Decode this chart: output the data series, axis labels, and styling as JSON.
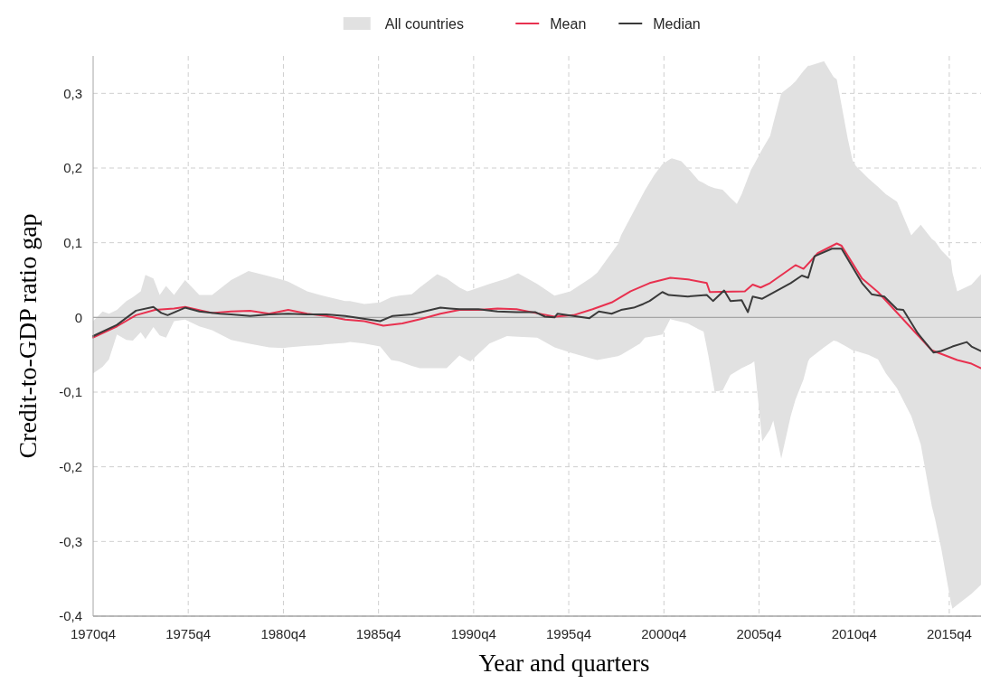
{
  "chart_data": {
    "type": "line",
    "xlabel": "Year and quarters",
    "ylabel": "Credit-to-GDP ratio gap",
    "xlim": [
      "1970-10",
      "2017-06"
    ],
    "xticks": [
      {
        "value": "1970-10",
        "label": "1970q4"
      },
      {
        "value": "1975-10",
        "label": "1975q4"
      },
      {
        "value": "1980-10",
        "label": "1980q4"
      },
      {
        "value": "1985-10",
        "label": "1985q4"
      },
      {
        "value": "1990-10",
        "label": "1990q4"
      },
      {
        "value": "1995-10",
        "label": "1995q4"
      },
      {
        "value": "2000-10",
        "label": "2000q4"
      },
      {
        "value": "2005-10",
        "label": "2005q4"
      },
      {
        "value": "2010-10",
        "label": "2010q4"
      },
      {
        "value": "2015-10",
        "label": "2015q4"
      }
    ],
    "ylim": [
      -0.4,
      0.35
    ],
    "yticks": [
      {
        "value": -0.4,
        "label": "-0,4"
      },
      {
        "value": -0.3,
        "label": "-0,3"
      },
      {
        "value": -0.2,
        "label": "-0,2"
      },
      {
        "value": -0.1,
        "label": "-0,1"
      },
      {
        "value": 0,
        "label": "0"
      },
      {
        "value": 0.1,
        "label": "0,1"
      },
      {
        "value": 0.2,
        "label": "0,2"
      },
      {
        "value": 0.3,
        "label": "0,3"
      }
    ],
    "grid": true,
    "legend": "top",
    "line_style": "solid",
    "ref_lines": [
      {
        "axis": "y",
        "value": 0,
        "color": "#a6a6a6"
      }
    ],
    "series": [
      {
        "name": "All countries",
        "type": "area",
        "color": "#e1e1e1",
        "x": [
          "1970-10",
          "1971-04",
          "1971-08",
          "1972-01",
          "1972-07",
          "1972-11",
          "1973-04",
          "1973-07",
          "1973-12",
          "1974-04",
          "1974-08",
          "1975-01",
          "1975-08",
          "1976-05",
          "1977-01",
          "1978-01",
          "1978-12",
          "1980-01",
          "1980-10",
          "1981-01",
          "1982-01",
          "1982-09",
          "1983-01",
          "1984-01",
          "1984-04",
          "1985-01",
          "1985-11",
          "1986-06",
          "1986-11",
          "1987-07",
          "1987-12",
          "1988-11",
          "1989-05",
          "1990-01",
          "1990-06",
          "1990-08",
          "1991-08",
          "1992-07",
          "1993-02",
          "1994-02",
          "1995-01",
          "1995-11",
          "1996-12",
          "1997-04",
          "1998-05",
          "1998-07",
          "1999-07",
          "1999-10",
          "2000-04",
          "2000-09",
          "2001-02",
          "2001-03",
          "2001-09",
          "2002-01",
          "2002-08",
          "2002-11",
          "2003-02",
          "2003-06",
          "2003-11",
          "2004-04",
          "2004-08",
          "2004-11",
          "2005-05",
          "2005-07",
          "2005-12",
          "2006-05",
          "2006-07",
          "2006-12",
          "2007-06",
          "2007-09",
          "2008-02",
          "2008-05",
          "2008-06",
          "2009-03",
          "2009-09",
          "2009-11",
          "2010-06",
          "2010-09",
          "2010-11",
          "2011-07",
          "2012-01",
          "2012-06",
          "2013-01",
          "2013-10",
          "2014-04",
          "2014-11",
          "2015-01",
          "2015-05",
          "2015-11",
          "2015-12",
          "2016-03",
          "2016-12",
          "2017-06"
        ],
        "values": [
          null,
          null,
          null,
          null,
          null,
          null,
          null,
          null,
          null,
          null,
          null,
          null,
          null,
          null,
          null,
          null,
          null,
          null,
          null,
          null,
          null,
          null,
          null,
          null,
          null,
          null,
          null,
          null,
          null,
          null,
          null,
          null,
          null,
          null,
          null,
          null,
          null,
          null,
          null,
          null,
          null,
          null,
          null,
          null,
          null,
          null,
          null,
          null,
          null,
          null,
          null,
          null,
          null,
          null,
          null,
          null,
          null,
          null,
          null,
          null,
          null,
          null,
          null,
          null,
          null,
          null,
          null,
          null,
          null,
          null,
          null,
          null,
          null,
          null,
          null,
          null,
          null,
          null,
          null,
          null,
          null,
          null,
          null,
          null,
          null,
          null,
          null,
          null,
          null,
          null,
          null,
          null,
          null
        ],
        "upper": [
          -0.005,
          0.008,
          0.005,
          0.01,
          0.022,
          0.027,
          0.035,
          0.057,
          0.052,
          0.03,
          0.042,
          0.03,
          0.05,
          0.03,
          0.03,
          0.05,
          0.062,
          0.055,
          0.05,
          0.048,
          0.035,
          0.03,
          0.028,
          0.022,
          0.022,
          0.018,
          0.02,
          0.027,
          0.029,
          0.031,
          0.04,
          0.058,
          0.052,
          0.04,
          0.035,
          0.036,
          0.045,
          0.052,
          0.059,
          0.045,
          0.029,
          0.035,
          0.053,
          0.06,
          0.098,
          0.11,
          0.158,
          0.17,
          0.191,
          0.205,
          0.212,
          0.213,
          0.209,
          0.2,
          0.183,
          0.18,
          0.176,
          0.173,
          0.171,
          0.16,
          0.152,
          0.165,
          0.198,
          0.205,
          0.225,
          0.243,
          0.26,
          0.3,
          0.31,
          0.316,
          0.33,
          0.337,
          0.337,
          0.343,
          0.322,
          0.319,
          0.239,
          0.21,
          0.203,
          0.186,
          0.175,
          0.165,
          0.155,
          0.11,
          0.124,
          0.105,
          0.102,
          0.09,
          0.077,
          0.06,
          0.035,
          0.044,
          0.058
        ],
        "lower": [
          -0.075,
          -0.066,
          -0.056,
          -0.023,
          -0.03,
          -0.031,
          -0.02,
          -0.029,
          -0.013,
          -0.024,
          -0.027,
          -0.005,
          -0.003,
          -0.012,
          -0.017,
          -0.03,
          -0.035,
          -0.04,
          -0.041,
          -0.04,
          -0.038,
          -0.037,
          -0.036,
          -0.034,
          -0.033,
          -0.035,
          -0.039,
          -0.057,
          -0.059,
          -0.065,
          -0.068,
          -0.068,
          -0.068,
          -0.051,
          -0.057,
          -0.059,
          -0.035,
          -0.025,
          -0.026,
          -0.027,
          -0.04,
          -0.047,
          -0.055,
          -0.057,
          -0.052,
          -0.05,
          -0.035,
          -0.027,
          -0.025,
          -0.023,
          -0.002,
          -0.003,
          -0.006,
          -0.008,
          -0.016,
          -0.019,
          -0.051,
          -0.099,
          -0.098,
          -0.077,
          -0.072,
          -0.068,
          -0.062,
          -0.059,
          -0.166,
          -0.15,
          -0.138,
          -0.189,
          -0.132,
          -0.11,
          -0.083,
          -0.059,
          -0.055,
          -0.04,
          -0.031,
          -0.032,
          -0.04,
          -0.044,
          -0.045,
          -0.05,
          -0.056,
          -0.075,
          -0.095,
          -0.132,
          -0.17,
          -0.253,
          -0.27,
          -0.31,
          -0.382,
          -0.39,
          -0.385,
          -0.37,
          -0.358
        ]
      },
      {
        "name": "Mean",
        "type": "line",
        "color": "#e8314f",
        "x": [
          "1970-10",
          "1972-01",
          "1973-01",
          "1974-01",
          "1975-01",
          "1975-08",
          "1977-01",
          "1978-01",
          "1979-01",
          "1980-01",
          "1981-01",
          "1982-01",
          "1983-01",
          "1984-01",
          "1985-01",
          "1986-01",
          "1987-01",
          "1988-01",
          "1989-01",
          "1990-01",
          "1991-01",
          "1992-01",
          "1993-01",
          "1994-01",
          "1995-01",
          "1996-01",
          "1997-01",
          "1998-01",
          "1999-01",
          "2000-01",
          "2001-02",
          "2002-01",
          "2003-01",
          "2003-03",
          "2005-01",
          "2005-06",
          "2005-11",
          "2006-05",
          "2007-09",
          "2008-02",
          "2008-11",
          "2009-11",
          "2010-02",
          "2011-03",
          "2012-01",
          "2013-02",
          "2013-12",
          "2014-11",
          "2016-03",
          "2016-12",
          "2017-06"
        ],
        "values": [
          -0.027,
          -0.012,
          0.003,
          0.01,
          0.012,
          0.014,
          0.006,
          0.008,
          0.009,
          0.005,
          0.01,
          0.005,
          0.002,
          -0.003,
          -0.005,
          -0.011,
          -0.008,
          -0.002,
          0.005,
          0.01,
          0.01,
          0.012,
          0.011,
          0.006,
          0.001,
          0.003,
          0.011,
          0.02,
          0.035,
          0.046,
          0.053,
          0.051,
          0.046,
          0.034,
          0.035,
          0.044,
          0.04,
          0.046,
          0.07,
          0.065,
          0.086,
          0.099,
          0.096,
          0.052,
          0.034,
          0.004,
          -0.019,
          -0.044,
          -0.057,
          -0.062,
          -0.068
        ]
      },
      {
        "name": "Median",
        "type": "line",
        "color": "#3a3a3a",
        "x": [
          "1970-10",
          "1972-01",
          "1973-01",
          "1973-12",
          "1974-05",
          "1974-09",
          "1975-08",
          "1976-05",
          "1977-06",
          "1978-01",
          "1979-01",
          "1980-01",
          "1981-01",
          "1982-01",
          "1983-01",
          "1984-01",
          "1985-11",
          "1986-07",
          "1987-07",
          "1989-01",
          "1989-07",
          "1990-01",
          "1991-01",
          "1992-01",
          "1993-01",
          "1994-01",
          "1994-07",
          "1995-01",
          "1995-03",
          "1996-11",
          "1997-05",
          "1998-01",
          "1998-07",
          "1999-03",
          "1999-09",
          "2000-01",
          "2000-09",
          "2001-01",
          "2002-01",
          "2003-01",
          "2003-05",
          "2003-12",
          "2004-04",
          "2004-11",
          "2005-03",
          "2005-06",
          "2005-12",
          "2007-06",
          "2008-01",
          "2008-05",
          "2008-09",
          "2009-08",
          "2010-02",
          "2011-03",
          "2011-09",
          "2012-05",
          "2013-01",
          "2013-05",
          "2014-02",
          "2014-12",
          "2015-05",
          "2015-12",
          "2016-09",
          "2016-12",
          "2017-06"
        ],
        "values": [
          -0.025,
          -0.01,
          0.009,
          0.014,
          0.006,
          0.003,
          0.013,
          0.008,
          0.005,
          0.004,
          0.002,
          0.004,
          0.005,
          0.004,
          0.004,
          0.002,
          -0.005,
          0.002,
          0.004,
          0.013,
          0.012,
          0.011,
          0.011,
          0.008,
          0.007,
          0.007,
          0.001,
          0.0,
          0.005,
          -0.001,
          0.008,
          0.005,
          0.01,
          0.013,
          0.018,
          0.022,
          0.034,
          0.03,
          0.028,
          0.03,
          0.022,
          0.036,
          0.022,
          0.023,
          0.007,
          0.028,
          0.025,
          0.046,
          0.056,
          0.053,
          0.082,
          0.092,
          0.092,
          0.046,
          0.031,
          0.028,
          0.011,
          0.01,
          -0.021,
          -0.047,
          -0.045,
          -0.039,
          -0.033,
          -0.039,
          -0.045
        ]
      }
    ]
  }
}
